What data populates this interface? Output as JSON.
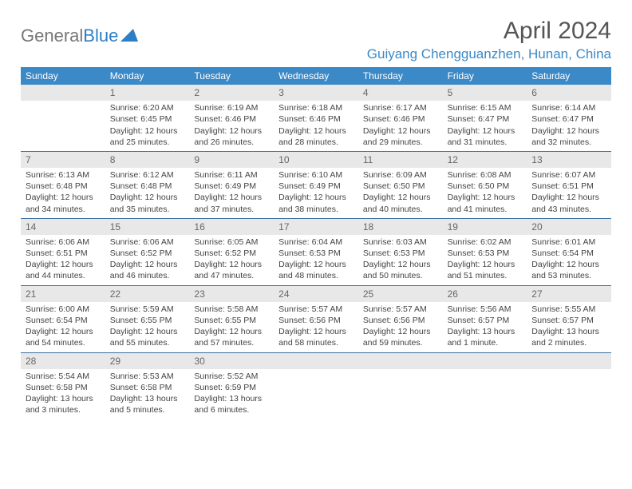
{
  "logo": {
    "part1": "General",
    "part2": "Blue"
  },
  "header": {
    "month_title": "April 2024",
    "location": "Guiyang Chengguanzhen, Hunan, China"
  },
  "colors": {
    "header_bg": "#3b89c7",
    "header_text": "#ffffff",
    "daynum_bg": "#e8e8e8",
    "daynum_text": "#666666",
    "body_text": "#444444",
    "divider": "#3b6fa0",
    "location_color": "#3b89c7",
    "logo_gray": "#777777"
  },
  "weekdays": [
    "Sunday",
    "Monday",
    "Tuesday",
    "Wednesday",
    "Thursday",
    "Friday",
    "Saturday"
  ],
  "weeks": [
    [
      null,
      {
        "n": "1",
        "sr": "Sunrise: 6:20 AM",
        "ss": "Sunset: 6:45 PM",
        "dl": "Daylight: 12 hours and 25 minutes."
      },
      {
        "n": "2",
        "sr": "Sunrise: 6:19 AM",
        "ss": "Sunset: 6:46 PM",
        "dl": "Daylight: 12 hours and 26 minutes."
      },
      {
        "n": "3",
        "sr": "Sunrise: 6:18 AM",
        "ss": "Sunset: 6:46 PM",
        "dl": "Daylight: 12 hours and 28 minutes."
      },
      {
        "n": "4",
        "sr": "Sunrise: 6:17 AM",
        "ss": "Sunset: 6:46 PM",
        "dl": "Daylight: 12 hours and 29 minutes."
      },
      {
        "n": "5",
        "sr": "Sunrise: 6:15 AM",
        "ss": "Sunset: 6:47 PM",
        "dl": "Daylight: 12 hours and 31 minutes."
      },
      {
        "n": "6",
        "sr": "Sunrise: 6:14 AM",
        "ss": "Sunset: 6:47 PM",
        "dl": "Daylight: 12 hours and 32 minutes."
      }
    ],
    [
      {
        "n": "7",
        "sr": "Sunrise: 6:13 AM",
        "ss": "Sunset: 6:48 PM",
        "dl": "Daylight: 12 hours and 34 minutes."
      },
      {
        "n": "8",
        "sr": "Sunrise: 6:12 AM",
        "ss": "Sunset: 6:48 PM",
        "dl": "Daylight: 12 hours and 35 minutes."
      },
      {
        "n": "9",
        "sr": "Sunrise: 6:11 AM",
        "ss": "Sunset: 6:49 PM",
        "dl": "Daylight: 12 hours and 37 minutes."
      },
      {
        "n": "10",
        "sr": "Sunrise: 6:10 AM",
        "ss": "Sunset: 6:49 PM",
        "dl": "Daylight: 12 hours and 38 minutes."
      },
      {
        "n": "11",
        "sr": "Sunrise: 6:09 AM",
        "ss": "Sunset: 6:50 PM",
        "dl": "Daylight: 12 hours and 40 minutes."
      },
      {
        "n": "12",
        "sr": "Sunrise: 6:08 AM",
        "ss": "Sunset: 6:50 PM",
        "dl": "Daylight: 12 hours and 41 minutes."
      },
      {
        "n": "13",
        "sr": "Sunrise: 6:07 AM",
        "ss": "Sunset: 6:51 PM",
        "dl": "Daylight: 12 hours and 43 minutes."
      }
    ],
    [
      {
        "n": "14",
        "sr": "Sunrise: 6:06 AM",
        "ss": "Sunset: 6:51 PM",
        "dl": "Daylight: 12 hours and 44 minutes."
      },
      {
        "n": "15",
        "sr": "Sunrise: 6:06 AM",
        "ss": "Sunset: 6:52 PM",
        "dl": "Daylight: 12 hours and 46 minutes."
      },
      {
        "n": "16",
        "sr": "Sunrise: 6:05 AM",
        "ss": "Sunset: 6:52 PM",
        "dl": "Daylight: 12 hours and 47 minutes."
      },
      {
        "n": "17",
        "sr": "Sunrise: 6:04 AM",
        "ss": "Sunset: 6:53 PM",
        "dl": "Daylight: 12 hours and 48 minutes."
      },
      {
        "n": "18",
        "sr": "Sunrise: 6:03 AM",
        "ss": "Sunset: 6:53 PM",
        "dl": "Daylight: 12 hours and 50 minutes."
      },
      {
        "n": "19",
        "sr": "Sunrise: 6:02 AM",
        "ss": "Sunset: 6:53 PM",
        "dl": "Daylight: 12 hours and 51 minutes."
      },
      {
        "n": "20",
        "sr": "Sunrise: 6:01 AM",
        "ss": "Sunset: 6:54 PM",
        "dl": "Daylight: 12 hours and 53 minutes."
      }
    ],
    [
      {
        "n": "21",
        "sr": "Sunrise: 6:00 AM",
        "ss": "Sunset: 6:54 PM",
        "dl": "Daylight: 12 hours and 54 minutes."
      },
      {
        "n": "22",
        "sr": "Sunrise: 5:59 AM",
        "ss": "Sunset: 6:55 PM",
        "dl": "Daylight: 12 hours and 55 minutes."
      },
      {
        "n": "23",
        "sr": "Sunrise: 5:58 AM",
        "ss": "Sunset: 6:55 PM",
        "dl": "Daylight: 12 hours and 57 minutes."
      },
      {
        "n": "24",
        "sr": "Sunrise: 5:57 AM",
        "ss": "Sunset: 6:56 PM",
        "dl": "Daylight: 12 hours and 58 minutes."
      },
      {
        "n": "25",
        "sr": "Sunrise: 5:57 AM",
        "ss": "Sunset: 6:56 PM",
        "dl": "Daylight: 12 hours and 59 minutes."
      },
      {
        "n": "26",
        "sr": "Sunrise: 5:56 AM",
        "ss": "Sunset: 6:57 PM",
        "dl": "Daylight: 13 hours and 1 minute."
      },
      {
        "n": "27",
        "sr": "Sunrise: 5:55 AM",
        "ss": "Sunset: 6:57 PM",
        "dl": "Daylight: 13 hours and 2 minutes."
      }
    ],
    [
      {
        "n": "28",
        "sr": "Sunrise: 5:54 AM",
        "ss": "Sunset: 6:58 PM",
        "dl": "Daylight: 13 hours and 3 minutes."
      },
      {
        "n": "29",
        "sr": "Sunrise: 5:53 AM",
        "ss": "Sunset: 6:58 PM",
        "dl": "Daylight: 13 hours and 5 minutes."
      },
      {
        "n": "30",
        "sr": "Sunrise: 5:52 AM",
        "ss": "Sunset: 6:59 PM",
        "dl": "Daylight: 13 hours and 6 minutes."
      },
      null,
      null,
      null,
      null
    ]
  ]
}
